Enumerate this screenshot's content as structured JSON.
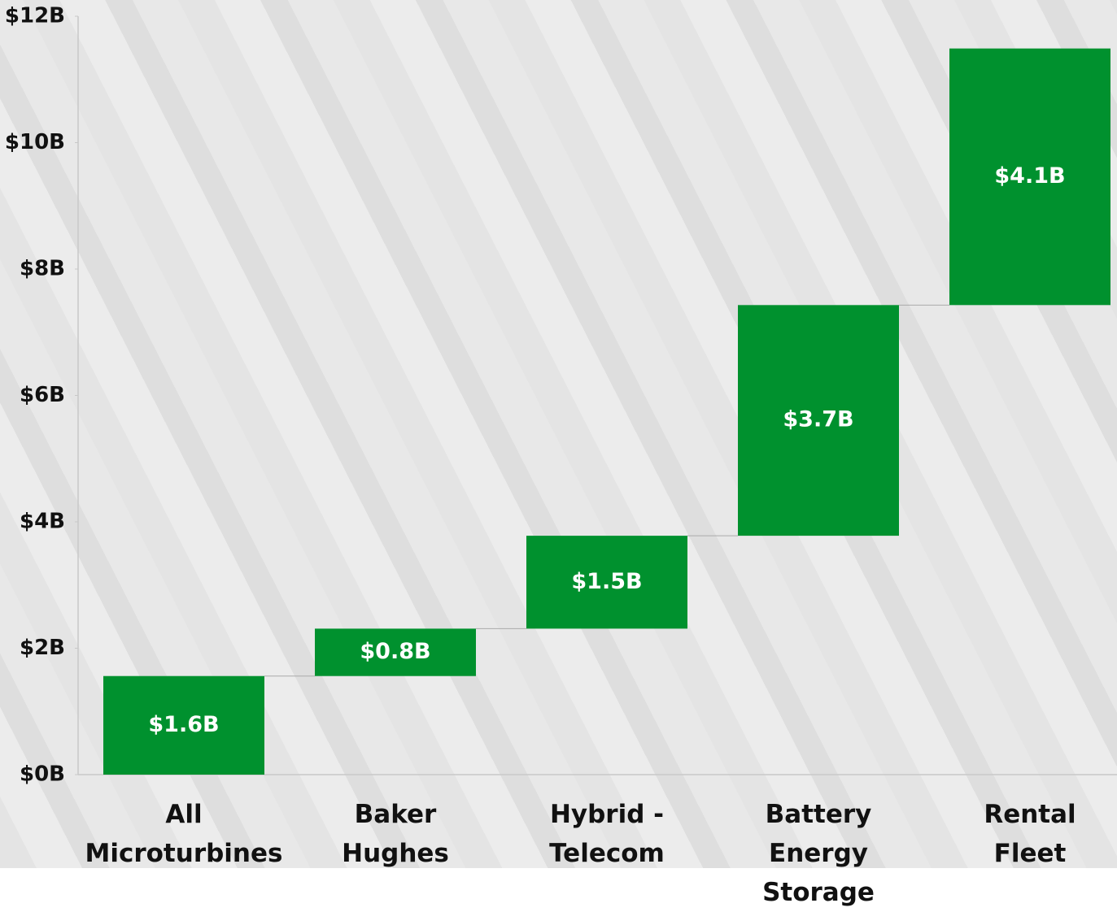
{
  "chart_data": {
    "type": "waterfall",
    "categories": [
      "All\nMicroturbines",
      "Baker\nHughes",
      "Hybrid -\nTelecom",
      "Battery Energy\nStorage",
      "Rental\nFleet"
    ],
    "values": [
      1.56,
      0.75,
      1.47,
      3.65,
      4.06
    ],
    "value_labels": [
      "$1.6B",
      "$0.8B",
      "$1.5B",
      "$3.7B",
      "$4.1B"
    ],
    "color": "#00912e",
    "ylim": [
      0,
      12
    ],
    "yticks": [
      {
        "value": 0,
        "label": "$0B"
      },
      {
        "value": 2,
        "label": "$2B"
      },
      {
        "value": 4,
        "label": "$4B"
      },
      {
        "value": 6,
        "label": "$6B"
      },
      {
        "value": 8,
        "label": "$8B"
      },
      {
        "value": 10,
        "label": "$10B"
      },
      {
        "value": 12,
        "label": "$12B"
      }
    ]
  }
}
